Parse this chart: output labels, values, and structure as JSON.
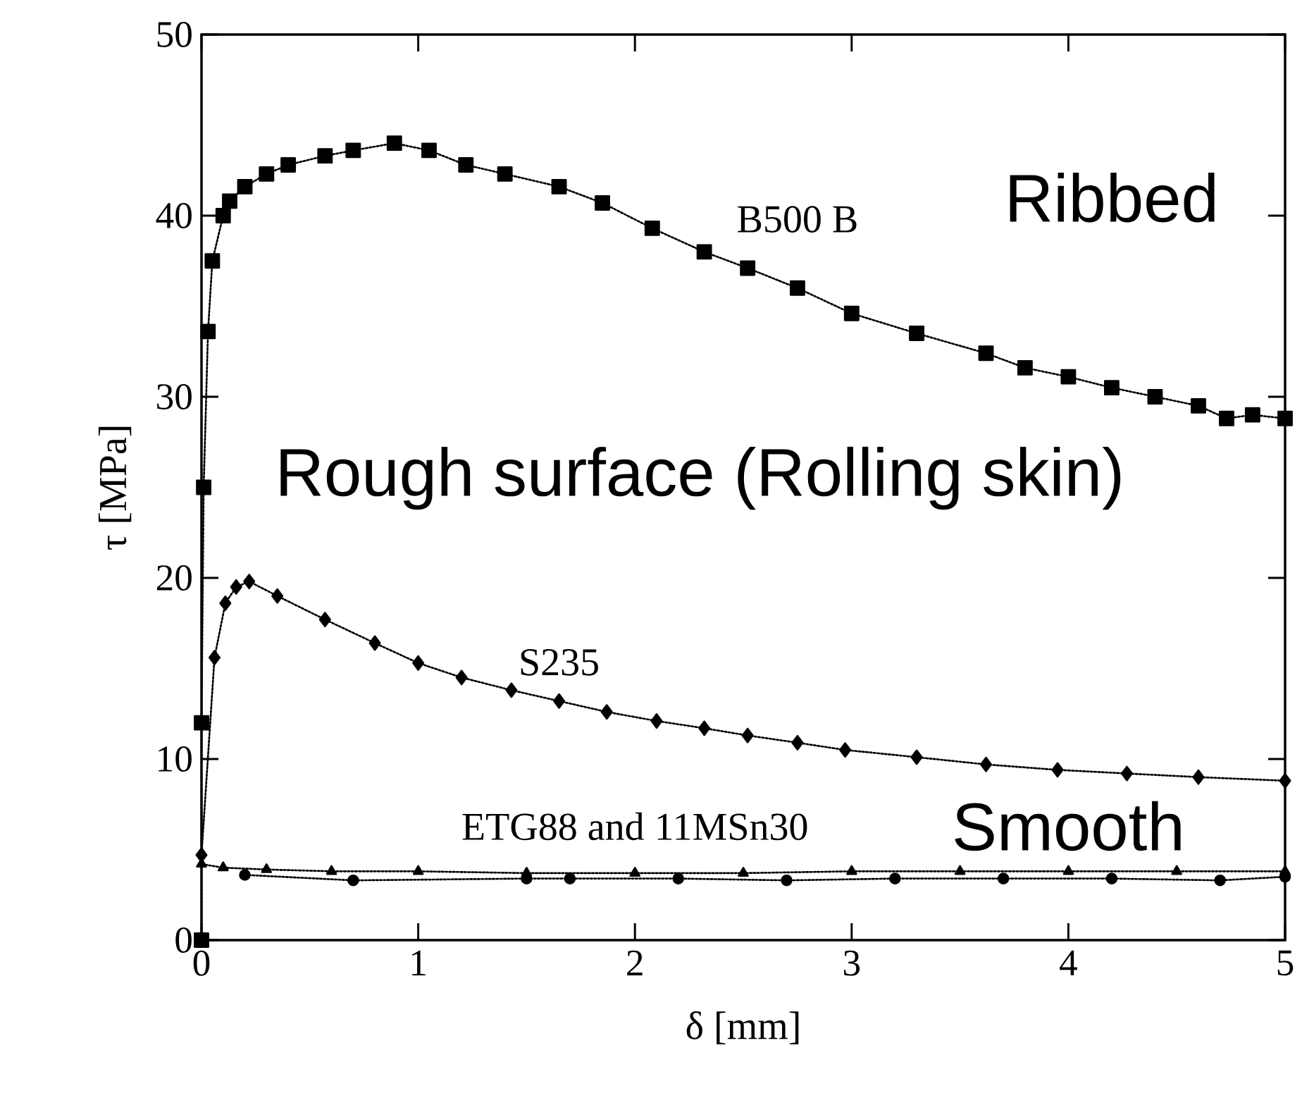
{
  "chart_data": {
    "type": "line",
    "xlabel": "δ [mm]",
    "ylabel": "τ [MPa]",
    "xlim": [
      0,
      5
    ],
    "ylim": [
      0,
      50
    ],
    "xticks": [
      0,
      1,
      2,
      3,
      4,
      5
    ],
    "yticks": [
      0,
      10,
      20,
      30,
      40,
      50
    ],
    "grid": false,
    "legend": false,
    "line_style": "dotted",
    "series": [
      {
        "name": "B500 B",
        "color": "#000000",
        "marker": "square",
        "x": [
          0,
          0,
          0.01,
          0.03,
          0.05,
          0.1,
          0.13,
          0.2,
          0.3,
          0.4,
          0.57,
          0.7,
          0.89,
          1.05,
          1.22,
          1.4,
          1.65,
          1.85,
          2.08,
          2.32,
          2.52,
          2.75,
          3.0,
          3.3,
          3.62,
          3.8,
          4.0,
          4.2,
          4.4,
          4.6,
          4.73,
          4.85,
          5.0
        ],
        "values": [
          0,
          12,
          25,
          33.6,
          37.5,
          40,
          40.8,
          41.6,
          42.3,
          42.8,
          43.3,
          43.6,
          44,
          43.6,
          42.8,
          42.3,
          41.6,
          40.7,
          39.3,
          38.0,
          37.1,
          36.0,
          34.6,
          33.5,
          32.4,
          31.6,
          31.1,
          30.5,
          30.0,
          29.5,
          28.8,
          29.0,
          28.8
        ]
      },
      {
        "name": "S235",
        "color": "#000000",
        "marker": "diamond",
        "x": [
          0,
          0.06,
          0.11,
          0.16,
          0.22,
          0.35,
          0.57,
          0.8,
          1.0,
          1.2,
          1.43,
          1.65,
          1.87,
          2.1,
          2.32,
          2.52,
          2.75,
          2.97,
          3.3,
          3.62,
          3.95,
          4.27,
          4.6,
          5.0
        ],
        "values": [
          4.7,
          15.6,
          18.6,
          19.5,
          19.8,
          19.0,
          17.7,
          16.4,
          15.3,
          14.5,
          13.8,
          13.2,
          12.6,
          12.1,
          11.7,
          11.3,
          10.9,
          10.5,
          10.1,
          9.7,
          9.4,
          9.2,
          9.0,
          8.8
        ]
      },
      {
        "name": "ETG88 and 11MSn30",
        "color": "#000000",
        "marker": "triangle",
        "x": [
          0,
          0.1,
          0.3,
          0.6,
          1.0,
          1.5,
          2.0,
          2.5,
          3.0,
          3.5,
          4.0,
          4.5,
          5.0
        ],
        "values": [
          4.2,
          4.0,
          3.9,
          3.8,
          3.8,
          3.7,
          3.7,
          3.7,
          3.8,
          3.8,
          3.8,
          3.8,
          3.8
        ]
      },
      {
        "color": "#000000",
        "marker": "circle",
        "x": [
          0.2,
          0.7,
          1.5,
          1.7,
          2.2,
          2.7,
          3.2,
          3.7,
          4.2,
          4.7,
          5.0
        ],
        "values": [
          3.6,
          3.3,
          3.4,
          3.4,
          3.4,
          3.3,
          3.4,
          3.4,
          3.4,
          3.3,
          3.5
        ]
      }
    ],
    "annotations": [
      "Ribbed",
      "Rough surface (Rolling skin)",
      "Smooth"
    ]
  }
}
